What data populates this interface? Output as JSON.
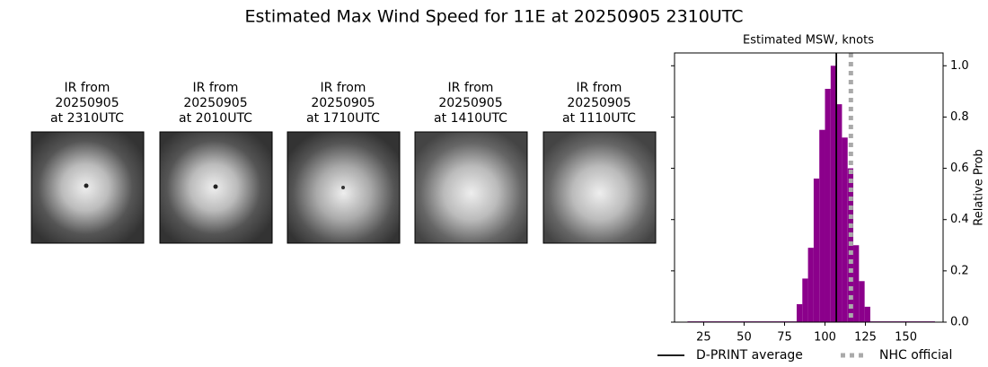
{
  "chart_data": {
    "type": "histogram",
    "title": "Estimated Max Wind Speed for 11E at 20250905 2310UTC",
    "subtitle": "Estimated MSW, knots",
    "ylabel": "Relative Prob",
    "color": "#8b008b",
    "bins": [
      15,
      82.5,
      86,
      89.5,
      93,
      96.5,
      100,
      103.5,
      107,
      110.5,
      114,
      117.5,
      121,
      124.5,
      128,
      168
    ],
    "values": [
      0.003,
      0.07,
      0.17,
      0.29,
      0.56,
      0.75,
      0.91,
      1.0,
      0.85,
      0.72,
      0.6,
      0.3,
      0.16,
      0.06,
      0.003
    ],
    "xlim": [
      7,
      173
    ],
    "xticks": [
      25,
      50,
      75,
      100,
      125,
      150
    ],
    "ylim": [
      0,
      1.05
    ],
    "yticks": [
      {
        "value": 0,
        "label": "0.0"
      },
      {
        "value": 0.2,
        "label": "0.2"
      },
      {
        "value": 0.4,
        "label": "0.4"
      },
      {
        "value": 0.6,
        "label": "0.6"
      },
      {
        "value": 0.8,
        "label": "0.8"
      },
      {
        "value": 1.0,
        "label": "1.0"
      }
    ],
    "lines": [
      {
        "name": "D-PRINT average",
        "value": 107,
        "color": "#000000",
        "style": "solid"
      },
      {
        "name": "NHC official",
        "value": 116,
        "color": "#aaaaaa",
        "style": "dotted"
      }
    ],
    "legend": "bottom"
  },
  "panels": [
    {
      "lines": [
        "IR from",
        "20250905",
        "at 2310UTC"
      ]
    },
    {
      "lines": [
        "IR from",
        "20250905",
        "at 2010UTC"
      ]
    },
    {
      "lines": [
        "IR from",
        "20250905",
        "at 1710UTC"
      ]
    },
    {
      "lines": [
        "IR from",
        "20250905",
        "at 1410UTC"
      ]
    },
    {
      "lines": [
        "IR from",
        "20250905",
        "at 1110UTC"
      ]
    }
  ]
}
